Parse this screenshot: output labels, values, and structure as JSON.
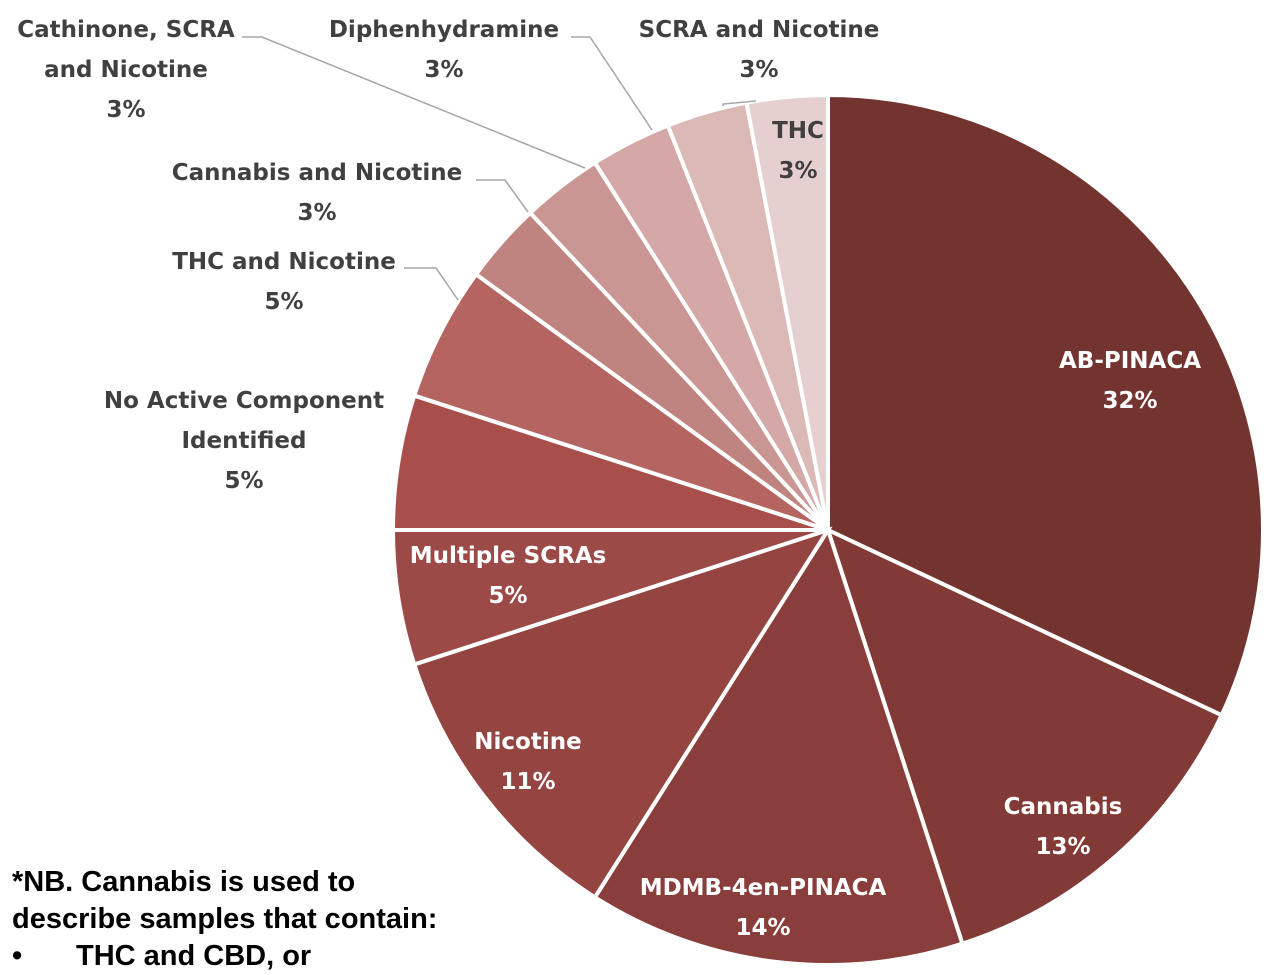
{
  "chart_data": {
    "type": "pie",
    "slices": [
      {
        "label": [
          "AB-PINACA"
        ],
        "value": 32,
        "value_label": "32%",
        "color": "#733430"
      },
      {
        "label": [
          "Cannabis"
        ],
        "value": 13,
        "value_label": "13%",
        "color": "#823a37"
      },
      {
        "label": [
          "MDMB-4en-PINACA"
        ],
        "value": 14,
        "value_label": "14%",
        "color": "#8a3e3b"
      },
      {
        "label": [
          "Nicotine"
        ],
        "value": 11,
        "value_label": "11%",
        "color": "#944542"
      },
      {
        "label": [
          "Multiple SCRAs"
        ],
        "value": 5,
        "value_label": "5%",
        "color": "#9c4a47"
      },
      {
        "label": [
          "No Active Component",
          "Identified"
        ],
        "value": 5,
        "value_label": "5%",
        "color": "#a84f4b"
      },
      {
        "label": [
          "THC and Nicotine"
        ],
        "value": 5,
        "value_label": "5%",
        "color": "#b46561"
      },
      {
        "label": [
          "Cannabis and Nicotine"
        ],
        "value": 3,
        "value_label": "3%",
        "color": "#c08480"
      },
      {
        "label": [
          "Cathinone, SCRA",
          "and Nicotine"
        ],
        "value": 3,
        "value_label": "3%",
        "color": "#c99693"
      },
      {
        "label": [
          "Diphenhydramine"
        ],
        "value": 3,
        "value_label": "3%",
        "color": "#d3a8a6"
      },
      {
        "label": [
          "SCRA and Nicotine"
        ],
        "value": 3,
        "value_label": "3%",
        "color": "#dbb9b7"
      },
      {
        "label": [
          "THC"
        ],
        "value": 3,
        "value_label": "3%",
        "color": "#e6d0cf"
      }
    ]
  },
  "note": {
    "line1": "*NB. Cannabis is used to",
    "line2": "describe samples that contain:",
    "bullet": "•",
    "line3": "THC and CBD, or"
  }
}
